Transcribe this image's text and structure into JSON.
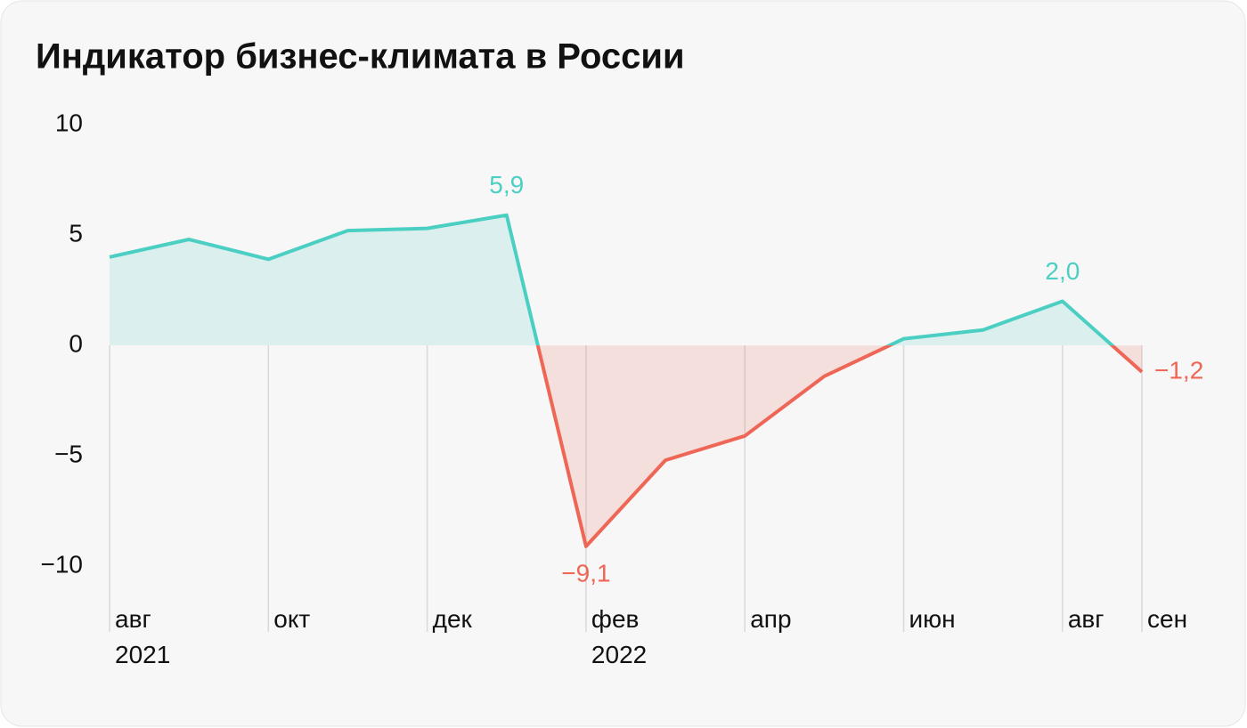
{
  "chart_data": {
    "type": "line",
    "title": "Индикатор бизнес-климата в России",
    "categories": [
      "авг\n2021",
      null,
      "окт",
      null,
      "дек",
      null,
      "фев\n2022",
      null,
      "апр",
      null,
      "июн",
      null,
      "авг",
      "сен"
    ],
    "values": [
      4.0,
      4.8,
      3.9,
      5.2,
      5.3,
      5.9,
      -9.1,
      -5.2,
      -4.1,
      -1.4,
      0.3,
      0.7,
      2.0,
      -1.2
    ],
    "value_labels": [
      null,
      null,
      null,
      null,
      null,
      "5,9",
      "−9,1",
      null,
      null,
      null,
      null,
      null,
      "2,0",
      "−1,2"
    ],
    "ylim": [
      -11,
      10
    ],
    "yticks": [
      10,
      5,
      0,
      {
        "value": -5,
        "label": "−5"
      },
      {
        "value": -10,
        "label": "−10"
      }
    ],
    "positive_color": "#4ccfc3",
    "negative_color": "#ee6655",
    "grid": true
  }
}
